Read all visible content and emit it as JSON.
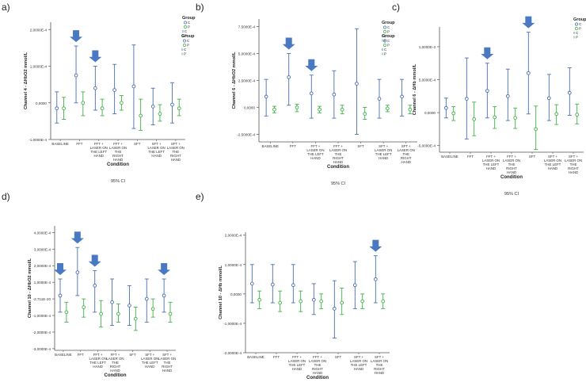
{
  "figure": {
    "conditions": [
      "BASELINE",
      "FFT",
      "FFT + LASER ON THE LEFT HAND",
      "FFT + LASER ON THE RIGHT HAND",
      "SFT",
      "SFT + LASER ON THE LEFT HAND",
      "SFT + LASER ON THE RIGHT HAND"
    ],
    "legend_title": "Group",
    "xlabel": "Condition",
    "footnote": "95% CI",
    "colors": {
      "C": "#4a6fb0",
      "P": "#41b04a",
      "arrow": "#4a79c2",
      "axis": "#555555"
    }
  },
  "chart_data": [
    {
      "panel": "a)",
      "type": "error-bar",
      "ylabel": "Channel 4 - ΔHbO2 mmol/L",
      "ylim": [
        -0.0001,
        0.00022
      ],
      "yticks": [
        -0.0001,
        0.0,
        0.0001,
        0.0002
      ],
      "ytick_labels": [
        "-1,0000E-4",
        "0,0000",
        "1,0000E-4",
        "2,0000E-4"
      ],
      "series": [
        {
          "name": "C",
          "means": [
            -1.5e-05,
            7.5e-05,
            4e-05,
            3.5e-05,
            4.5e-05,
            -1e-05,
            -5e-06
          ],
          "lower": [
            -5.5e-05,
            0.0,
            -2e-05,
            -3e-05,
            -7e-05,
            -6e-05,
            -5.5e-05
          ],
          "upper": [
            3e-05,
            0.000155,
            0.0001,
            0.000105,
            0.000158,
            4e-05,
            5.5e-05
          ]
        },
        {
          "name": "P",
          "means": [
            -1.5e-05,
            0.0,
            -1.5e-05,
            0.0,
            -3.5e-05,
            -3e-05,
            -1.5e-05
          ],
          "lower": [
            -4.5e-05,
            -3.5e-05,
            -3.5e-05,
            -2e-05,
            -7.5e-05,
            -5e-05,
            -3.5e-05
          ],
          "upper": [
            1.5e-05,
            3e-05,
            1e-05,
            2e-05,
            1e-05,
            -5e-06,
            1e-05
          ]
        }
      ],
      "arrows": [
        1,
        2
      ]
    },
    {
      "panel": "b)",
      "type": "error-bar",
      "ylabel": "Channel 6 - ΔHbO2 mmol/L",
      "ylim": [
        -0.00032,
        0.00082
      ],
      "yticks": [
        -0.00025,
        0.0,
        0.00025,
        0.0005,
        0.00075
      ],
      "ytick_labels": [
        "-2,5000E-4",
        "0,0000",
        "2,5000E-4",
        "5,0000E-4",
        "7,5000E-4"
      ],
      "series": [
        {
          "name": "C",
          "means": [
            0.0001,
            0.00028,
            0.00013,
            0.00012,
            0.00022,
            8e-05,
            0.0001
          ],
          "lower": [
            -8e-05,
            2e-05,
            -0.0001,
            -0.0001,
            -0.00025,
            -0.0001,
            -8e-05
          ],
          "upper": [
            0.00026,
            0.0005,
            0.0003,
            0.00034,
            0.00073,
            0.00026,
            0.00026
          ]
        },
        {
          "name": "P",
          "means": [
            -2e-05,
            0.0,
            -2e-05,
            -2e-05,
            -6e-05,
            -1e-05,
            -2e-05
          ],
          "lower": [
            -5e-05,
            -4e-05,
            -5e-05,
            -6e-05,
            -0.00011,
            -4e-05,
            -6e-05
          ],
          "upper": [
            1e-05,
            3e-05,
            1e-05,
            2e-05,
            0.0,
            2e-05,
            2e-05
          ]
        }
      ],
      "arrows": [
        1,
        2
      ]
    },
    {
      "panel": "c)",
      "type": "error-bar",
      "ylabel": "Channel 6 - ΔHb mmol/L",
      "ylim": [
        -0.0006,
        0.0013
      ],
      "yticks": [
        -0.0005,
        0.0,
        0.0005,
        0.001
      ],
      "ytick_labels": [
        "-5,0000E-4",
        "0,0000",
        "5,0000E-4",
        "1,0000E-3"
      ],
      "series": [
        {
          "name": "C",
          "means": [
            7e-05,
            0.00021,
            0.00033,
            0.00025,
            0.0006,
            0.00022,
            0.0003
          ],
          "lower": [
            -8e-05,
            -0.0004,
            -8e-05,
            -0.00012,
            -2e-05,
            -0.00012,
            -4e-05
          ],
          "upper": [
            0.00022,
            0.00083,
            0.00075,
            0.00066,
            0.00122,
            0.00058,
            0.00068
          ]
        },
        {
          "name": "P",
          "means": [
            -1e-05,
            -0.0001,
            -7e-05,
            -8e-05,
            -0.00025,
            -2e-05,
            -3e-05
          ],
          "lower": [
            -0.00012,
            -0.00035,
            -0.00024,
            -0.00024,
            -0.00056,
            -0.00018,
            -0.00017
          ],
          "upper": [
            9e-05,
            0.00016,
            9e-05,
            7e-05,
            0.0001,
            0.00012,
            0.00013
          ]
        }
      ],
      "arrows": [
        2,
        4
      ]
    },
    {
      "panel": "d)",
      "type": "error-bar",
      "ylabel": "Channel 10 - ΔHbO2 mmol/L",
      "ylim": [
        -0.00031,
        0.00044
      ],
      "yticks": [
        -0.0003,
        -0.0002,
        -0.0001,
        0.0,
        0.0001,
        0.0002,
        0.0003,
        0.0004
      ],
      "ytick_labels": [
        "-3,0000E-4",
        "-2,0000E-4",
        "-1,0000E-4",
        "-2,711E-20",
        "1,0000E-4",
        "2,0000E-4",
        "3,0000E-4",
        "4,0000E-4"
      ],
      "series": [
        {
          "name": "C",
          "means": [
            2e-05,
            0.00016,
            8e-05,
            -2e-05,
            -4e-05,
            0.0,
            2e-05
          ],
          "lower": [
            -8e-05,
            2e-05,
            -8e-05,
            -0.00016,
            -0.00016,
            -0.00014,
            -8e-05
          ],
          "upper": [
            0.00012,
            0.00031,
            0.00017,
            0.00012,
            8e-05,
            0.00012,
            0.00012
          ]
        },
        {
          "name": "P",
          "means": [
            -8e-05,
            -5e-05,
            -9e-05,
            -9e-05,
            -0.00012,
            -6e-05,
            -9e-05
          ],
          "lower": [
            -0.00014,
            -0.00011,
            -0.00017,
            -0.00014,
            -0.00019,
            -0.00011,
            -0.00014
          ],
          "upper": [
            -2e-05,
            0.0,
            -1e-05,
            -3e-05,
            -5e-05,
            0.0,
            -2e-05
          ]
        }
      ],
      "arrows": [
        0,
        1,
        2,
        6
      ]
    },
    {
      "panel": "e)",
      "type": "error-bar",
      "ylabel": "Channel 10 - ΔHb mmol/L",
      "ylim": [
        -0.0002,
        0.00021
      ],
      "yticks": [
        -0.0002,
        -0.0001,
        0.0,
        0.0001,
        0.0002
      ],
      "ytick_labels": [
        "-2,0000E-4",
        "-1,0000E-4",
        "0,0000",
        "1,0000E-4",
        "2,0000E-4"
      ],
      "series": [
        {
          "name": "C",
          "means": [
            3.5e-05,
            3.2e-05,
            3e-05,
            -2e-05,
            -5e-05,
            3e-05,
            5e-05
          ],
          "lower": [
            -3e-05,
            -3e-05,
            -3e-05,
            -7e-05,
            -0.00015,
            -5e-05,
            -3e-05
          ],
          "upper": [
            0.0001,
            0.0001,
            0.0001,
            3.5e-05,
            4.5e-05,
            0.00011,
            0.00013
          ]
        },
        {
          "name": "P",
          "means": [
            -2e-05,
            -3e-05,
            -2.5e-05,
            -2.5e-05,
            -3e-05,
            -2.5e-05,
            -2.5e-05
          ],
          "lower": [
            -5e-05,
            -6e-05,
            -6e-05,
            -5e-05,
            -7e-05,
            -5e-05,
            -5e-05
          ],
          "upper": [
            1e-05,
            1e-05,
            1e-05,
            0.0,
            2e-05,
            0.0,
            0.0
          ]
        }
      ],
      "arrows": [
        6
      ]
    }
  ]
}
